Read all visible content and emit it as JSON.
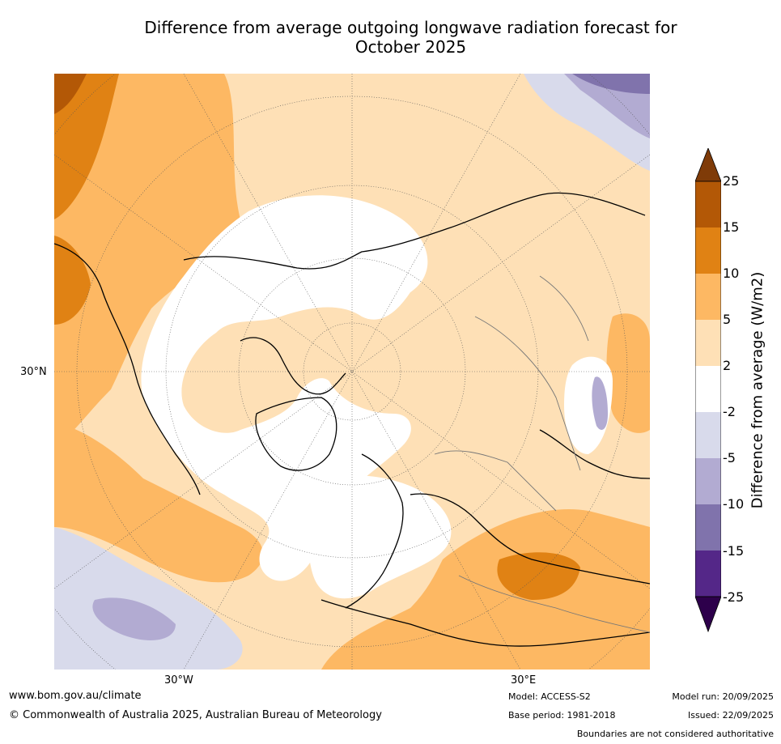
{
  "title": {
    "line1": "Difference from average outgoing longwave radiation forecast for",
    "line2": "October 2025"
  },
  "map": {
    "projection": "north polar stereographic",
    "region": "Northern Hemisphere",
    "axis_labels": {
      "lat_30n": "30°N",
      "lon_30w": "30°W",
      "lon_30e": "30°E"
    }
  },
  "colorbar": {
    "label": "Difference from average (W/m2)",
    "ticks": [
      "25",
      "15",
      "10",
      "5",
      "2",
      "-2",
      "-5",
      "-10",
      "-15",
      "-25"
    ],
    "colors": [
      "#7f3b08",
      "#b35806",
      "#e08214",
      "#fdb863",
      "#fee0b6",
      "#ffffff",
      "#d8daeb",
      "#b2abd2",
      "#8073ac",
      "#542788",
      "#2d004b"
    ]
  },
  "footer": {
    "website": "www.bom.gov.au/climate",
    "copyright": "© Commonwealth of Australia 2025, Australian Bureau of Meteorology",
    "model": "Model: ACCESS-S2",
    "base_period": "Base period: 1981-2018",
    "model_run": "Model run: 20/09/2025",
    "issued": "Issued: 22/09/2025",
    "disclaimer": "Boundaries are not considered authoritative"
  }
}
